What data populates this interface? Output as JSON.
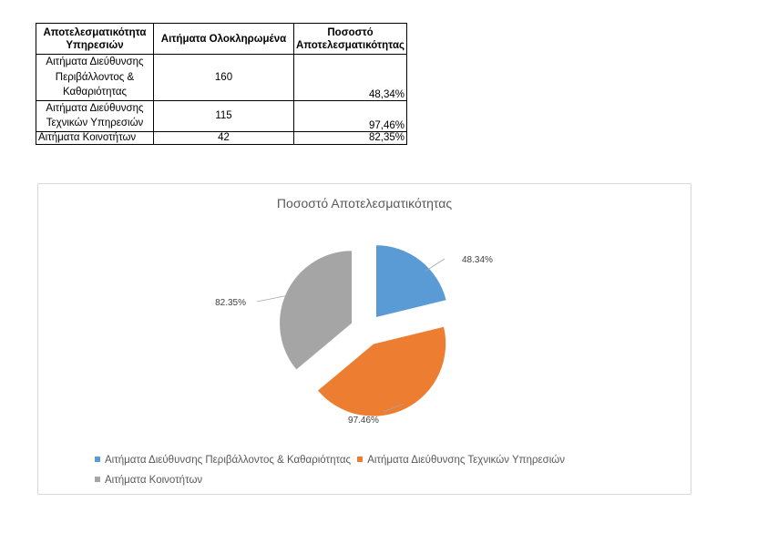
{
  "table": {
    "headers": [
      "Αποτελεσματικότητα Υπηρεσιών",
      "Αιτήματα Ολοκληρωμένα",
      "Ποσοστό Αποτελεσματικότητας"
    ],
    "rows": [
      {
        "name": "Αιτήματα Διεύθυνσης Περιβάλλοντος & Καθαριότητας",
        "completed": "160",
        "percent": "48,34%"
      },
      {
        "name": "Αιτήματα Διεύθυνσης Τεχνικών Υπηρεσιών",
        "completed": "115",
        "percent": "97,46%"
      },
      {
        "name": "Αιτήματα Κοινοτήτων",
        "completed": "42",
        "percent": "82,35%"
      }
    ]
  },
  "chart_data": {
    "type": "pie",
    "title": "Ποσοστό Αποτελεσματικότητας",
    "exploded": true,
    "legend_position": "bottom",
    "slices": [
      {
        "label": "Αιτήματα Διεύθυνσης Περιβάλλοντος & Καθαριότητας",
        "value": 48.34,
        "data_label": "48.34%",
        "color": "#5b9bd5"
      },
      {
        "label": "Αιτήματα Διεύθυνσης Τεχνικών  Υπηρεσιών",
        "value": 97.46,
        "data_label": "97.46%",
        "color": "#ed7d31"
      },
      {
        "label": "Αιτήματα  Κοινοτήτων",
        "value": 82.35,
        "data_label": "82.35%",
        "color": "#a5a5a5"
      }
    ]
  }
}
